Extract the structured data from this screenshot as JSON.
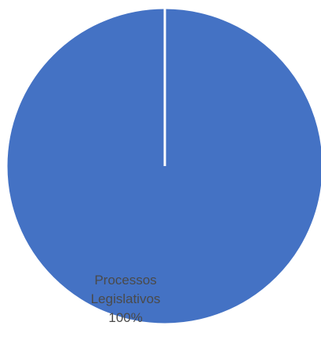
{
  "chart_data": {
    "type": "pie",
    "categories": [
      "Processos Legislativos"
    ],
    "values": [
      100
    ],
    "colors": [
      "#4472C4"
    ],
    "data_labels": [
      {
        "category_lines": [
          "Processos",
          "Legislativos"
        ],
        "value_text": "100%"
      }
    ],
    "title": "",
    "legend": "none"
  }
}
